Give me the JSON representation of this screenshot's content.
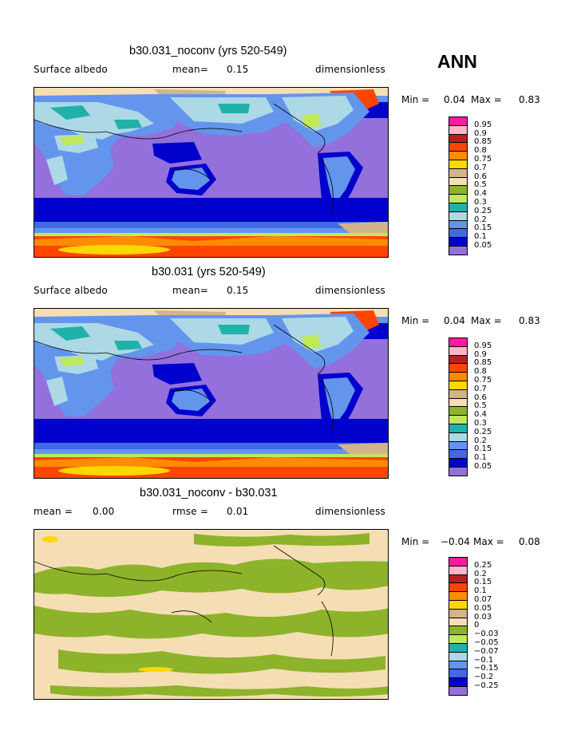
{
  "season": "ANN",
  "panels": [
    {
      "title": "b30.031_noconv (yrs 520-549)",
      "left_label": "Surface albedo",
      "center_label": "mean=",
      "center_value": "0.15",
      "right_label": "dimensionless",
      "min_label": "Min =",
      "min_value": "0.04",
      "max_label": "Max =",
      "max_value": "0.83",
      "legend": {
        "levels": [
          "0.95",
          "0.9",
          "0.85",
          "0.8",
          "0.75",
          "0.7",
          "0.6",
          "0.5",
          "0.4",
          "0.3",
          "0.25",
          "0.2",
          "0.15",
          "0.1",
          "0.05"
        ],
        "colors": [
          "#ff1aa0",
          "#ffb6c8",
          "#b22222",
          "#ff4500",
          "#ff8c00",
          "#ffd700",
          "#d2b48c",
          "#f5deb3",
          "#8db32a",
          "#bfe85b",
          "#20b2aa",
          "#add8e6",
          "#6495ed",
          "#4169e1",
          "#0000cd",
          "#9370db"
        ]
      }
    },
    {
      "title": "b30.031 (yrs 520-549)",
      "left_label": "Surface albedo",
      "center_label": "mean=",
      "center_value": "0.15",
      "right_label": "dimensionless",
      "min_label": "Min =",
      "min_value": "0.04",
      "max_label": "Max =",
      "max_value": "0.83",
      "legend": {
        "levels": [
          "0.95",
          "0.9",
          "0.85",
          "0.8",
          "0.75",
          "0.7",
          "0.6",
          "0.5",
          "0.4",
          "0.3",
          "0.25",
          "0.2",
          "0.15",
          "0.1",
          "0.05"
        ],
        "colors": [
          "#ff1aa0",
          "#ffb6c8",
          "#b22222",
          "#ff4500",
          "#ff8c00",
          "#ffd700",
          "#d2b48c",
          "#f5deb3",
          "#8db32a",
          "#bfe85b",
          "#20b2aa",
          "#add8e6",
          "#6495ed",
          "#4169e1",
          "#0000cd",
          "#9370db"
        ]
      }
    },
    {
      "title": "b30.031_noconv - b30.031",
      "left_label": "mean =",
      "left_value": "0.00",
      "center_label": "rmse =",
      "center_value": "0.01",
      "right_label": "dimensionless",
      "min_label": "Min =",
      "min_value": "−0.04",
      "max_label": "Max =",
      "max_value": "0.08",
      "legend": {
        "levels": [
          "0.25",
          "0.2",
          "0.15",
          "0.1",
          "0.07",
          "0.05",
          "0.03",
          "0",
          "−0.03",
          "−0.05",
          "−0.07",
          "−0.1",
          "−0.15",
          "−0.2",
          "−0.25"
        ],
        "colors": [
          "#ff1aa0",
          "#ffb6c8",
          "#b22222",
          "#ff4500",
          "#ff8c00",
          "#ffd700",
          "#d2b48c",
          "#f5deb3",
          "#8db32a",
          "#bfe85b",
          "#20b2aa",
          "#add8e6",
          "#6495ed",
          "#4169e1",
          "#0000cd",
          "#9370db"
        ]
      }
    }
  ]
}
